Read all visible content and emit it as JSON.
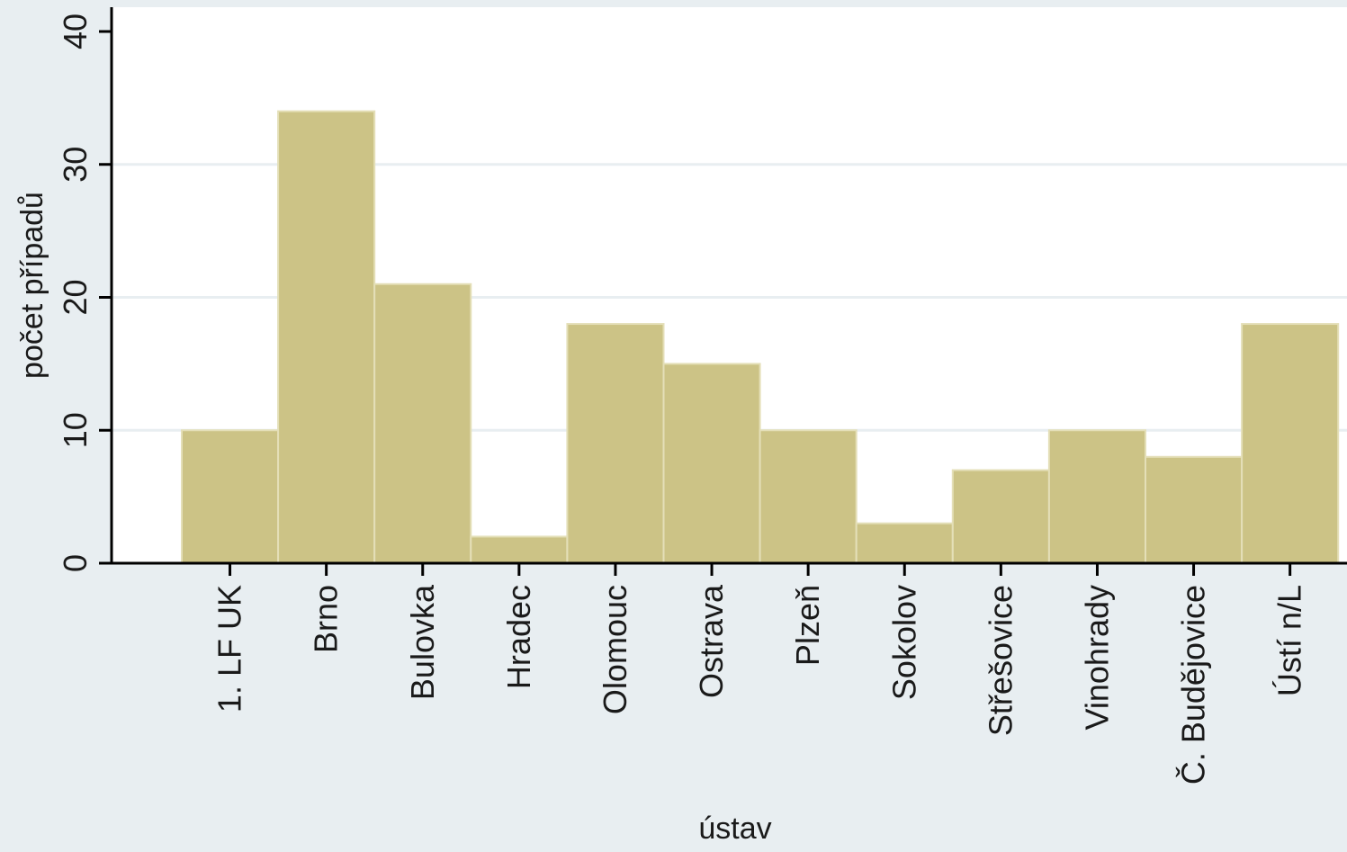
{
  "chart_data": {
    "type": "bar",
    "title": "",
    "xlabel": "ústav",
    "ylabel": "počet případů",
    "categories": [
      "1. LF UK",
      "Brno",
      "Bulovka",
      "Hradec",
      "Olomouc",
      "Ostrava",
      "Plzeň",
      "Sokolov",
      "Střešovice",
      "Vinohrady",
      "Č. Budějovice",
      "Ústí n/L"
    ],
    "values": [
      10,
      34,
      21,
      2,
      18,
      15,
      10,
      3,
      7,
      10,
      8,
      18
    ],
    "ylim": [
      0,
      40
    ],
    "yticks": [
      "0",
      "10",
      "20",
      "30",
      "40"
    ],
    "grid": true,
    "legend": "none",
    "colors": {
      "bar_fill": "#ccc386",
      "bar_edge": "#e4dfb8",
      "plot_background": "#ffffff",
      "figure_background": "#e8eef1",
      "gridline": "#e8eef1",
      "axis": "#000000"
    }
  }
}
